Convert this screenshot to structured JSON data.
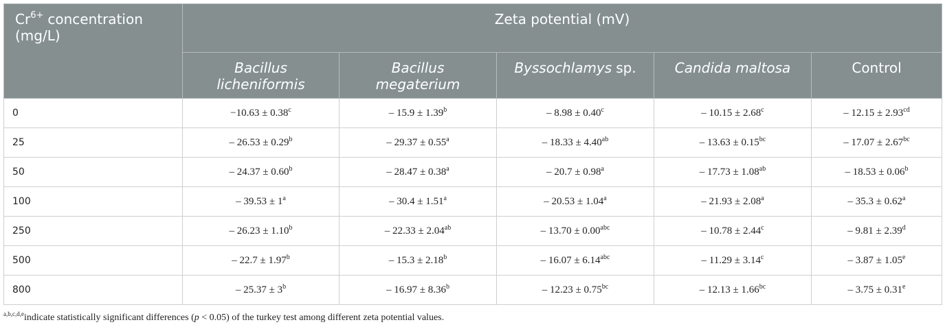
{
  "table": {
    "row_header": {
      "base": "Cr",
      "sup": "6+",
      "text": "concentration (mg/L)"
    },
    "group_header": "Zeta potential (mV)",
    "columns": [
      {
        "italic": "Bacillus licheniformis"
      },
      {
        "italic": "Bacillus megaterium"
      },
      {
        "italic": "Byssochlamys",
        "plain": "sp."
      },
      {
        "italic": "Candida maltosa"
      },
      {
        "plain": "Control"
      }
    ],
    "rows": [
      {
        "label": "0",
        "cells": [
          {
            "value": "−10.63 ± 0.38",
            "sup": "c"
          },
          {
            "value": "– 15.9 ± 1.39",
            "sup": "b"
          },
          {
            "value": "– 8.98 ± 0.40",
            "sup": "c"
          },
          {
            "value": "– 10.15 ± 2.68",
            "sup": "c"
          },
          {
            "value": "– 12.15 ± 2.93",
            "sup": "cd"
          }
        ]
      },
      {
        "label": "25",
        "cells": [
          {
            "value": "– 26.53 ± 0.29",
            "sup": "b"
          },
          {
            "value": "– 29.37 ± 0.55",
            "sup": "a"
          },
          {
            "value": "– 18.33 ± 4.40",
            "sup": "ab"
          },
          {
            "value": "– 13.63 ± 0.15",
            "sup": "bc"
          },
          {
            "value": "– 17.07 ± 2.67",
            "sup": "bc"
          }
        ]
      },
      {
        "label": "50",
        "cells": [
          {
            "value": "– 24.37 ± 0.60",
            "sup": "b"
          },
          {
            "value": "– 28.47 ± 0.38",
            "sup": "a"
          },
          {
            "value": "– 20.7 ± 0.98",
            "sup": "a"
          },
          {
            "value": "– 17.73 ± 1.08",
            "sup": "ab"
          },
          {
            "value": "– 18.53 ± 0.06",
            "sup": "b"
          }
        ]
      },
      {
        "label": "100",
        "cells": [
          {
            "value": "– 39.53 ± 1",
            "sup": "a"
          },
          {
            "value": "– 30.4 ± 1.51",
            "sup": "a"
          },
          {
            "value": "– 20.53 ± 1.04",
            "sup": "a"
          },
          {
            "value": "– 21.93 ± 2.08",
            "sup": "a"
          },
          {
            "value": "– 35.3 ± 0.62",
            "sup": "a"
          }
        ]
      },
      {
        "label": "250",
        "cells": [
          {
            "value": "– 26.23 ± 1.10",
            "sup": "b"
          },
          {
            "value": "– 22.33 ± 2.04",
            "sup": "ab"
          },
          {
            "value": "– 13.70 ± 0.00",
            "sup": "abc"
          },
          {
            "value": "– 10.78 ± 2.44",
            "sup": "c"
          },
          {
            "value": "– 9.81 ± 2.39",
            "sup": "d"
          }
        ]
      },
      {
        "label": "500",
        "cells": [
          {
            "value": "– 22.7 ± 1.97",
            "sup": "b"
          },
          {
            "value": "– 15.3 ± 2.18",
            "sup": "b"
          },
          {
            "value": "– 16.07 ± 6.14",
            "sup": "abc"
          },
          {
            "value": "– 11.29 ± 3.14",
            "sup": "c"
          },
          {
            "value": "– 3.87 ± 1.05",
            "sup": "e"
          }
        ]
      },
      {
        "label": "800",
        "cells": [
          {
            "value": "– 25.37 ± 3",
            "sup": "b"
          },
          {
            "value": "– 16.97 ± 8.36",
            "sup": "b"
          },
          {
            "value": "– 12.23 ± 0.75",
            "sup": "bc"
          },
          {
            "value": "– 12.13 ± 1.66",
            "sup": "bc"
          },
          {
            "value": "– 3.75 ± 0.31",
            "sup": "e"
          }
        ]
      }
    ]
  },
  "footnote": {
    "sup": "a,b,c,d,e",
    "parts": [
      "indicate statistically significant differences (",
      "p",
      " < 0.05) of the turkey test among different zeta potential values."
    ]
  }
}
